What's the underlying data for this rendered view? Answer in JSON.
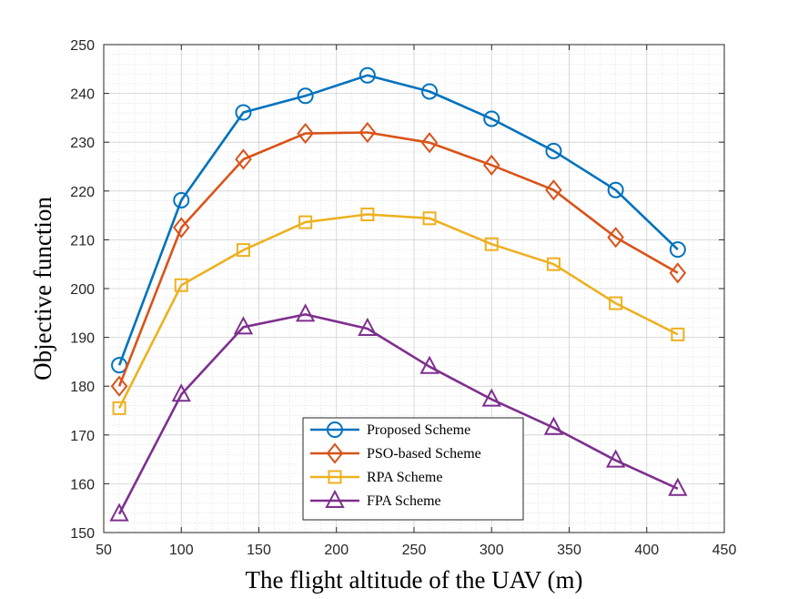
{
  "chart_data": {
    "type": "line",
    "title": "",
    "xlabel": "The flight altitude of the UAV (m)",
    "ylabel": "Objective function",
    "xlim": [
      50,
      450
    ],
    "ylim": [
      150,
      250
    ],
    "xticks": [
      50,
      100,
      150,
      200,
      250,
      300,
      350,
      400,
      450
    ],
    "yticks": [
      150,
      160,
      170,
      180,
      190,
      200,
      210,
      220,
      230,
      240,
      250
    ],
    "grid": true,
    "minor_grid": true,
    "legend_position": "bottom-center",
    "x": [
      60,
      100,
      140,
      180,
      220,
      260,
      300,
      340,
      380,
      420
    ],
    "series": [
      {
        "name": "Proposed Scheme",
        "color": "#0072BD",
        "marker": "circle",
        "values": [
          184.3,
          218.1,
          236.1,
          239.5,
          243.7,
          240.4,
          234.8,
          228.2,
          220.2,
          208.0
        ]
      },
      {
        "name": "PSO-based Scheme",
        "color": "#D95319",
        "marker": "diamond",
        "values": [
          180.0,
          212.5,
          226.5,
          231.8,
          232.0,
          229.9,
          225.3,
          220.2,
          210.5,
          203.2
        ]
      },
      {
        "name": "RPA Scheme",
        "color": "#EDB120",
        "marker": "square",
        "values": [
          175.5,
          200.7,
          207.9,
          213.6,
          215.2,
          214.4,
          209.1,
          205.0,
          197.0,
          190.6
        ]
      },
      {
        "name": "FPA Scheme",
        "color": "#7E2F8E",
        "marker": "triangle",
        "values": [
          153.8,
          178.3,
          192.1,
          194.7,
          191.8,
          184.0,
          177.3,
          171.5,
          164.8,
          159.0
        ]
      }
    ]
  }
}
